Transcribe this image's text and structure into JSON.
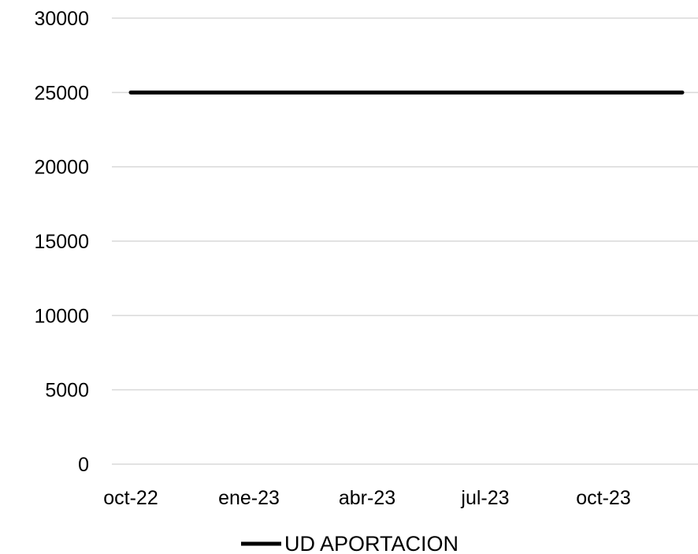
{
  "chart_data": {
    "type": "line",
    "title": "",
    "xlabel": "",
    "ylabel": "",
    "x_tick_labels": [
      "oct-22",
      "ene-23",
      "abr-23",
      "jul-23",
      "oct-23"
    ],
    "y_tick_labels": [
      "0",
      "5000",
      "10000",
      "15000",
      "20000",
      "25000",
      "30000"
    ],
    "ylim": [
      0,
      30000
    ],
    "x_range": [
      "oct-22",
      "dic-23"
    ],
    "grid": true,
    "legend_position": "bottom",
    "series": [
      {
        "name": "UD APORTACION",
        "color": "#000000",
        "x": [
          "oct-22",
          "dic-23"
        ],
        "values": [
          25000,
          25000
        ]
      }
    ]
  }
}
